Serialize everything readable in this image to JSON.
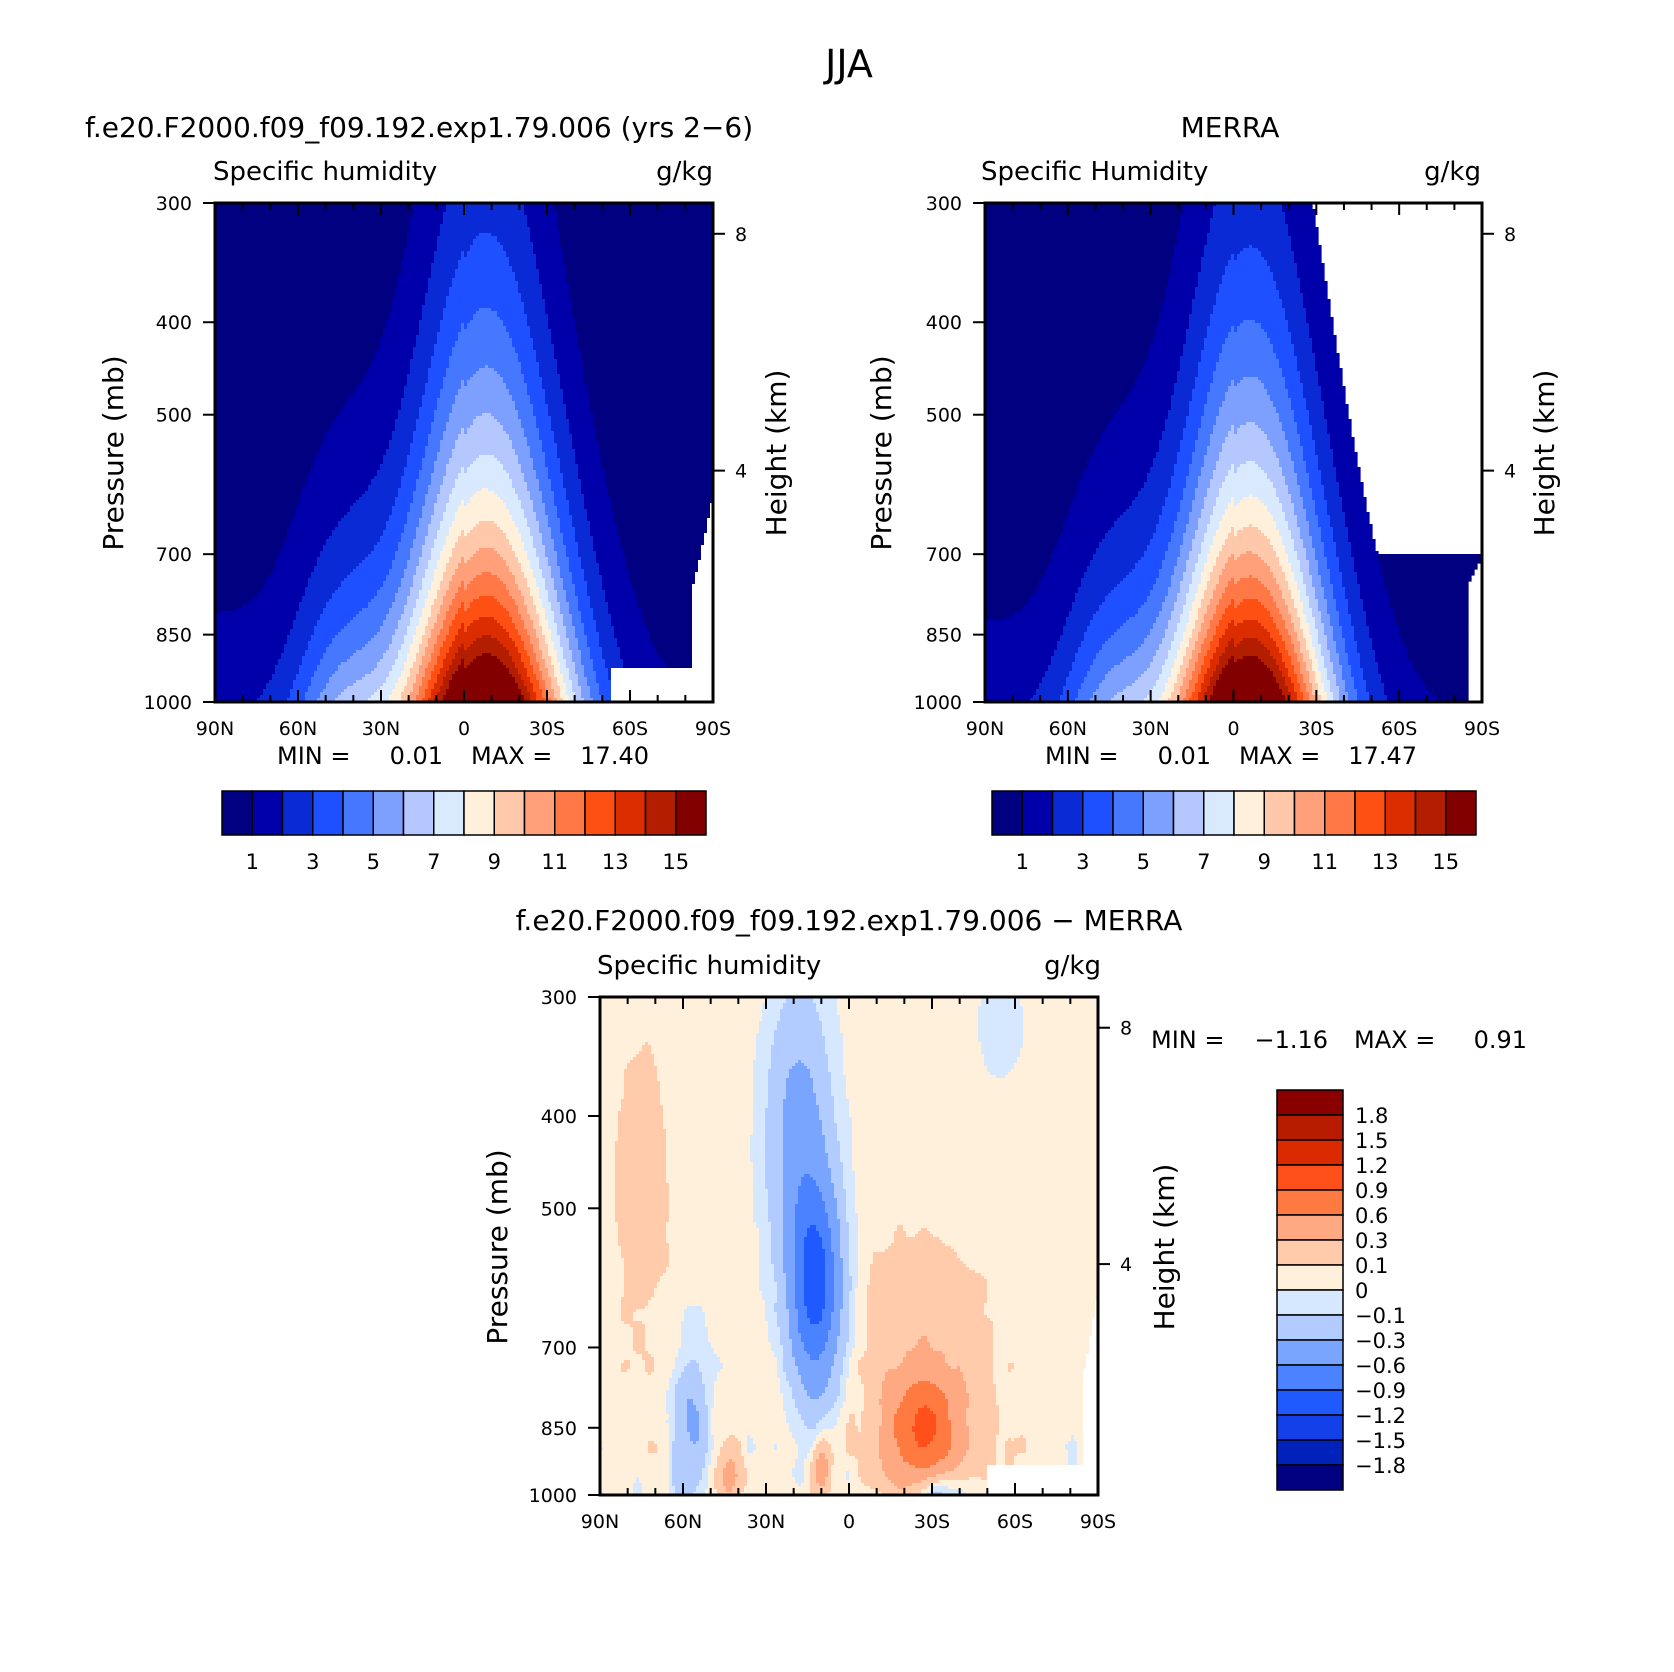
{
  "figure": {
    "season_title": "JJA"
  },
  "colors": {
    "abs_levels": [
      "#000080",
      "#0000ab",
      "#0a2ad6",
      "#1e50ff",
      "#4678ff",
      "#7da0ff",
      "#b4c8ff",
      "#d9eaff",
      "#fff0dc",
      "#ffc8aa",
      "#ffa07a",
      "#ff7846",
      "#ff5014",
      "#dc2d00",
      "#b41e00",
      "#820000"
    ],
    "diff_levels": [
      "#000080",
      "#0022bb",
      "#1340e8",
      "#1e5aff",
      "#4b82ff",
      "#7aa5ff",
      "#b2ccff",
      "#d6e8ff",
      "#fff0dc",
      "#ffcbaa",
      "#ffa982",
      "#ff7a40",
      "#ff4f1a",
      "#dc2a00",
      "#b81c00",
      "#8a0000"
    ],
    "missing": "#ffffff"
  },
  "chart_data": [
    {
      "id": "model",
      "type": "contour",
      "title": "f.e20.F2000.f09_f09.192.exp1.79.006 (yrs 2−6)",
      "left_label": "Specific humidity",
      "right_label": "g/kg",
      "ylabel": "Pressure (mb)",
      "ylabel_right": "Height (km)",
      "xticks": [
        "90N",
        "60N",
        "30N",
        "0",
        "30S",
        "60S",
        "90S"
      ],
      "yticks": [
        "300",
        "400",
        "500",
        "700",
        "850",
        "1000"
      ],
      "height_ticks": [
        "8",
        "4"
      ],
      "stats": {
        "min_label": "MIN =",
        "min": "0.01",
        "max_label": "MAX =",
        "max": "17.40"
      },
      "colorbar": {
        "orientation": "horizontal",
        "labels": [
          "1",
          "3",
          "5",
          "7",
          "9",
          "11",
          "13",
          "15"
        ]
      },
      "peak": 17.4,
      "peak_lat": -8,
      "peak_width": 32,
      "scale_height": 340,
      "hemi_n": 0.26,
      "hemi_s": 0.12
    },
    {
      "id": "merra",
      "type": "contour",
      "title": "MERRA",
      "left_label": "Specific Humidity",
      "right_label": "g/kg",
      "ylabel": "Pressure (mb)",
      "ylabel_right": "Height (km)",
      "xticks": [
        "90N",
        "60N",
        "30N",
        "0",
        "30S",
        "60S",
        "90S"
      ],
      "yticks": [
        "300",
        "400",
        "500",
        "700",
        "850",
        "1000"
      ],
      "height_ticks": [
        "8",
        "4"
      ],
      "stats": {
        "min_label": "MIN =",
        "min": "0.01",
        "max_label": "MAX =",
        "max": "17.47"
      },
      "colorbar": {
        "orientation": "horizontal",
        "labels": [
          "1",
          "3",
          "5",
          "7",
          "9",
          "11",
          "13",
          "15"
        ]
      },
      "peak": 17.47,
      "peak_lat": -6,
      "peak_width": 30,
      "scale_height": 330,
      "hemi_n": 0.25,
      "hemi_s": 0.11
    },
    {
      "id": "difference",
      "type": "contour",
      "title": "f.e20.F2000.f09_f09.192.exp1.79.006 − MERRA",
      "left_label": "Specific humidity",
      "right_label": "g/kg",
      "ylabel": "Pressure (mb)",
      "ylabel_right": "Height (km)",
      "xticks": [
        "90N",
        "60N",
        "30N",
        "0",
        "30S",
        "60S",
        "90S"
      ],
      "yticks": [
        "300",
        "400",
        "500",
        "700",
        "850",
        "1000"
      ],
      "height_ticks": [
        "8",
        "4"
      ],
      "stats": {
        "min_label": "MIN =",
        "min": "−1.16",
        "max_label": "MAX =",
        "max": "0.91"
      },
      "colorbar": {
        "orientation": "vertical",
        "labels": [
          "1.8",
          "1.5",
          "1.2",
          "0.9",
          "0.6",
          "0.3",
          "0.1",
          "0",
          "−0.1",
          "−0.3",
          "−0.6",
          "−0.9",
          "−1.2",
          "−1.5",
          "−1.8"
        ]
      }
    }
  ]
}
